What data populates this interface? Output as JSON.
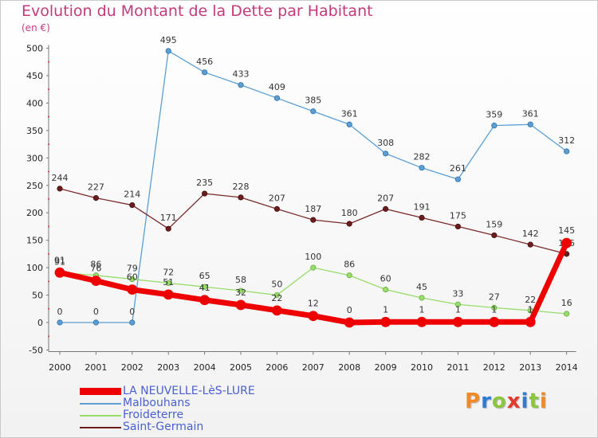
{
  "title": "Evolution du Montant de la Dette par Habitant",
  "unit": "(en €)",
  "logo_text": "Proxiti",
  "logo_colors": [
    "#f08a24",
    "#2e7bd6",
    "#8cc63f",
    "#e23b2e",
    "#2e7bd6",
    "#8cc63f",
    "#f08a24"
  ],
  "chart_data": {
    "type": "line",
    "title": "Evolution du Montant de la Dette par Habitant",
    "ylabel": "(en €)",
    "xlabel": "",
    "ylim": [
      -50,
      500
    ],
    "yticks": [
      -50,
      0,
      50,
      100,
      150,
      200,
      250,
      300,
      350,
      400,
      450,
      500
    ],
    "x": [
      "2000",
      "2001",
      "2002",
      "2003",
      "2004",
      "2005",
      "2006",
      "2007",
      "2008",
      "2009",
      "2010",
      "2011",
      "2012",
      "2013",
      "2014"
    ],
    "grid": false,
    "legend": "bottom-left",
    "series": [
      {
        "name": "Malbouhans",
        "color": "#5b9fd4",
        "values": [
          0,
          0,
          0,
          495,
          456,
          433,
          409,
          385,
          361,
          308,
          282,
          261,
          359,
          361,
          312
        ]
      },
      {
        "name": "Saint-Germain",
        "color": "#6b1c1c",
        "values": [
          244,
          227,
          214,
          171,
          235,
          228,
          207,
          187,
          180,
          207,
          191,
          175,
          159,
          142,
          125
        ]
      },
      {
        "name": "Froideterre",
        "color": "#98dc6c",
        "values": [
          91,
          86,
          79,
          72,
          65,
          58,
          50,
          100,
          86,
          60,
          45,
          33,
          27,
          22,
          16
        ]
      },
      {
        "name": "LA NEUVELLE-LèS-LURE",
        "color": "#ee0000",
        "values": [
          91,
          76,
          60,
          51,
          41,
          32,
          22,
          12,
          0,
          1,
          1,
          1,
          1,
          1,
          145
        ]
      }
    ],
    "legend_order": [
      "LA NEUVELLE-LèS-LURE",
      "Malbouhans",
      "Froideterre",
      "Saint-Germain"
    ]
  }
}
